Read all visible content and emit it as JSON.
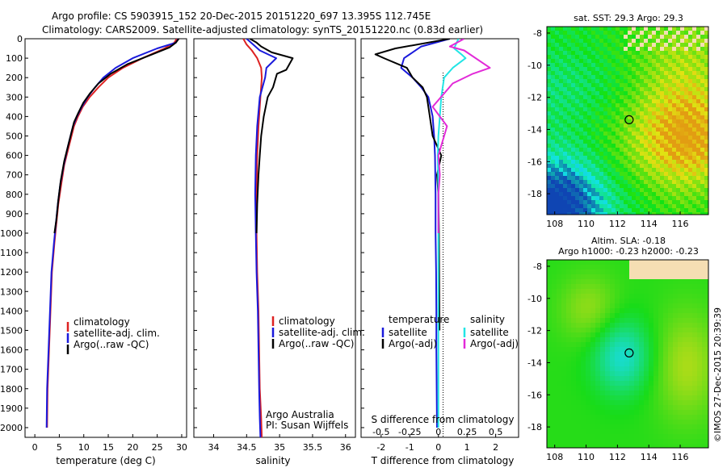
{
  "header": {
    "line1": "Argo profile: CS 5903915_152 20-Dec-2015 20151220_697 13.395S 112.745E",
    "line2": "Climatology: CARS2009. Satellite-adjusted climatology: synTS_20151220.nc (0.83d earlier)"
  },
  "colors": {
    "climatology": "#dd2222",
    "satellite": "#1a1adc",
    "argo": "#000000",
    "satellite_salinity": "#22e5e5",
    "argo_salinity": "#e22ad8"
  },
  "depth_axis": {
    "range": [
      0,
      2050
    ],
    "ticks": [
      "0",
      "100",
      "200",
      "300",
      "400",
      "500",
      "600",
      "700",
      "800",
      "900",
      "1000",
      "1100",
      "1200",
      "1300",
      "1400",
      "1500",
      "1600",
      "1700",
      "1800",
      "1900",
      "2000"
    ]
  },
  "chart_data": [
    {
      "id": "temperature",
      "type": "line",
      "xlabel": "temperature (deg C)",
      "xlim": [
        -2,
        31
      ],
      "ylim": [
        0,
        2050
      ],
      "xticks": [
        "0",
        "5",
        "10",
        "15",
        "20",
        "25",
        "30"
      ],
      "legend": [
        "climatology",
        "satellite-adj. clim.",
        "Argo(..raw -QC)"
      ],
      "series": [
        {
          "name": "climatology",
          "color": "red",
          "x": [
            29.0,
            28.5,
            26.5,
            22,
            18,
            15,
            13,
            11.2,
            9.8,
            8.8,
            8.0,
            7.0,
            6.0,
            5.4,
            4.8,
            4.4,
            4.0,
            3.5,
            3.2,
            2.9,
            2.6,
            2.5
          ],
          "y": [
            0,
            20,
            50,
            100,
            150,
            200,
            250,
            300,
            350,
            400,
            450,
            550,
            650,
            750,
            850,
            950,
            1050,
            1200,
            1400,
            1600,
            1800,
            2000
          ]
        },
        {
          "name": "satellite-adj. clim.",
          "color": "blue",
          "x": [
            29.3,
            28.8,
            25,
            20,
            16.5,
            14,
            12.3,
            10.8,
            9.6,
            8.6,
            7.8,
            6.8,
            5.9,
            5.2,
            4.7,
            4.3,
            3.9,
            3.4,
            3.1,
            2.8,
            2.5,
            2.4
          ],
          "y": [
            0,
            20,
            50,
            100,
            150,
            200,
            250,
            300,
            350,
            400,
            450,
            550,
            650,
            750,
            850,
            950,
            1050,
            1200,
            1400,
            1600,
            1800,
            2000
          ]
        },
        {
          "name": "Argo(..raw -QC)",
          "color": "black",
          "x": [
            29.4,
            28.8,
            27.5,
            24,
            19,
            15.5,
            13.0,
            11.3,
            9.9,
            8.9,
            8.0,
            7.0,
            6.0,
            5.3,
            4.8,
            4.4,
            4.0
          ],
          "y": [
            0,
            20,
            45,
            80,
            130,
            180,
            230,
            280,
            330,
            380,
            430,
            530,
            630,
            730,
            830,
            930,
            1000
          ]
        }
      ]
    },
    {
      "id": "salinity",
      "type": "line",
      "xlabel": "salinity",
      "xlim": [
        33.7,
        36.15
      ],
      "ylim": [
        0,
        2050
      ],
      "xticks": [
        "34",
        "34.5",
        "35",
        "35.5",
        "36"
      ],
      "legend": [
        "climatology",
        "satellite-adj. clim.",
        "Argo(..raw -QC)"
      ],
      "annotation": [
        "Argo Australia",
        "PI: Susan Wijffels"
      ],
      "series": [
        {
          "name": "climatology",
          "color": "red",
          "x": [
            34.45,
            34.5,
            34.58,
            34.66,
            34.72,
            34.73,
            34.71,
            34.68,
            34.66,
            34.65,
            34.65,
            34.66,
            34.68,
            34.69,
            34.7,
            34.72,
            34.73
          ],
          "y": [
            0,
            30,
            60,
            100,
            150,
            200,
            300,
            450,
            600,
            800,
            1000,
            1200,
            1400,
            1600,
            1800,
            1950,
            2050
          ]
        },
        {
          "name": "satellite-adj. clim.",
          "color": "blue",
          "x": [
            34.5,
            34.6,
            34.7,
            34.95,
            34.8,
            34.78,
            34.7,
            34.66,
            34.64,
            34.63,
            34.64,
            34.65,
            34.67,
            34.68,
            34.69,
            34.7,
            34.71
          ],
          "y": [
            0,
            30,
            60,
            100,
            150,
            200,
            300,
            450,
            600,
            800,
            1000,
            1200,
            1400,
            1600,
            1800,
            1950,
            2050
          ]
        },
        {
          "name": "Argo(..raw -QC)",
          "color": "black",
          "x": [
            34.55,
            34.65,
            34.72,
            34.88,
            35.2,
            35.1,
            34.96,
            34.9,
            34.82,
            34.76,
            34.72,
            34.7,
            34.68,
            34.66,
            34.65
          ],
          "y": [
            0,
            20,
            40,
            70,
            100,
            160,
            180,
            250,
            300,
            400,
            500,
            600,
            700,
            850,
            1000
          ]
        }
      ]
    },
    {
      "id": "difference",
      "type": "line",
      "xlabel": "T difference from climatology",
      "xlabel_top": "S difference from climatology",
      "xlim": [
        -2.7,
        2.8
      ],
      "ylim": [
        0,
        2050
      ],
      "xticks": [
        "-2",
        "-1",
        "0",
        "1",
        "2"
      ],
      "xticks_top": [
        "-0.5",
        "-0.25",
        "0",
        "0.25",
        "0.5"
      ],
      "legend_temperature_title": "temperature",
      "legend_salinity_title": "salinity",
      "legend_temperature": [
        "satellite",
        "Argo(-adj)"
      ],
      "legend_salinity": [
        "satellite",
        "Argo(-adj)"
      ],
      "series": [
        {
          "name": "temperature satellite",
          "color": "blue",
          "x": [
            0.4,
            -0.6,
            -1.2,
            -1.3,
            -0.9,
            -0.6,
            -0.35,
            -0.2,
            -0.15,
            -0.12,
            -0.1,
            -0.1,
            -0.08,
            -0.07,
            -0.07,
            -0.06,
            -0.05
          ],
          "y": [
            0,
            40,
            100,
            150,
            200,
            250,
            300,
            400,
            500,
            600,
            800,
            1000,
            1200,
            1400,
            1600,
            1800,
            2000
          ]
        },
        {
          "name": "temperature Argo(-adj)",
          "color": "black",
          "x": [
            0.4,
            -1.5,
            -2.2,
            -1.9,
            -1.1,
            -0.9,
            -0.55,
            -0.4,
            -0.3,
            -0.2,
            0.1,
            -0.05,
            0.0,
            0.02,
            0.04
          ],
          "y": [
            0,
            50,
            80,
            100,
            150,
            200,
            250,
            300,
            400,
            500,
            600,
            700,
            800,
            1000,
            1500
          ]
        },
        {
          "name": "salinity satellite",
          "color": "cyan",
          "x": [
            0.7,
            0.55,
            0.8,
            0.95,
            0.5,
            0.2,
            0.1,
            0.05,
            0.0,
            -0.02,
            0.0,
            0.0,
            0.0,
            0.0,
            0.0,
            0.0
          ],
          "y": [
            0,
            50,
            80,
            100,
            150,
            200,
            300,
            400,
            500,
            600,
            800,
            1000,
            1200,
            1500,
            1800,
            2000
          ]
        },
        {
          "name": "salinity Argo(-adj)",
          "color": "magenta",
          "x": [
            0.9,
            0.4,
            0.9,
            1.8,
            1.2,
            0.5,
            -0.2,
            0.3,
            0.0,
            0.05,
            0.0,
            0.0
          ],
          "y": [
            0,
            40,
            60,
            150,
            180,
            230,
            350,
            450,
            600,
            700,
            800,
            1000
          ]
        }
      ]
    },
    {
      "id": "sst_map",
      "type": "heatmap",
      "title": "sat. SST: 29.3  Argo: 29.3",
      "xticks": [
        "108",
        "110",
        "112",
        "114",
        "116"
      ],
      "yticks": [
        "-8",
        "-10",
        "-12",
        "-14",
        "-16",
        "-18"
      ],
      "xlim": [
        107.5,
        117.8
      ],
      "ylim": [
        -19.3,
        -7.6
      ],
      "marker": {
        "lon": 112.745,
        "lat": -13.395
      }
    },
    {
      "id": "sla_map",
      "type": "heatmap",
      "title_line1": "Altim. SLA: -0.18",
      "title_line2": "Argo h1000: -0.23  h2000: -0.23",
      "xticks": [
        "108",
        "110",
        "112",
        "114",
        "116"
      ],
      "yticks": [
        "-8",
        "-10",
        "-12",
        "-14",
        "-16",
        "-18"
      ],
      "xlim": [
        107.5,
        117.8
      ],
      "ylim": [
        -19.3,
        -7.6
      ],
      "marker": {
        "lon": 112.745,
        "lat": -13.395
      }
    }
  ],
  "credit": "©IMOS 27-Dec-2015 20:39:39"
}
